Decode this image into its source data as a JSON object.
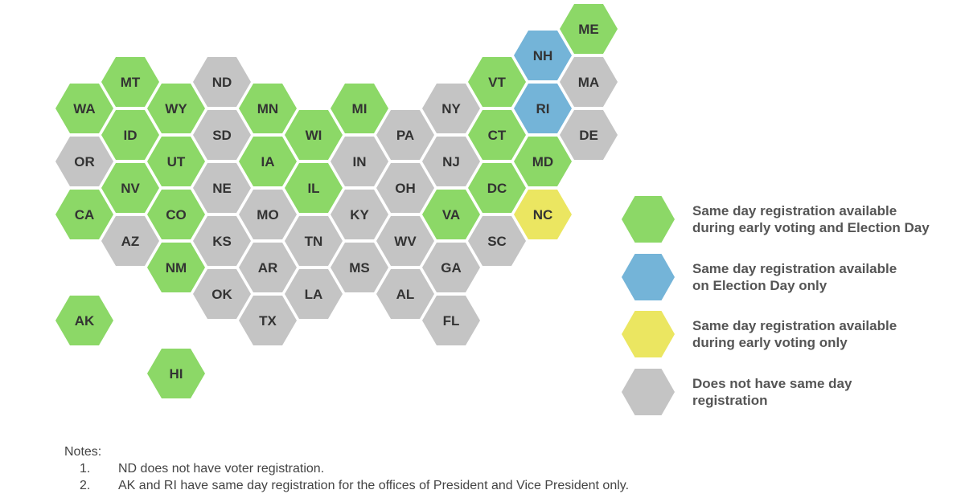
{
  "colors": {
    "both": "#8cd867",
    "election_day": "#74b4d8",
    "early_voting": "#ebe661",
    "none": "#c4c4c4"
  },
  "states": [
    {
      "abbr": "ME",
      "status": "both"
    },
    {
      "abbr": "NH",
      "status": "election_day"
    },
    {
      "abbr": "MT",
      "status": "both"
    },
    {
      "abbr": "ND",
      "status": "none"
    },
    {
      "abbr": "VT",
      "status": "both"
    },
    {
      "abbr": "MA",
      "status": "none"
    },
    {
      "abbr": "WA",
      "status": "both"
    },
    {
      "abbr": "WY",
      "status": "both"
    },
    {
      "abbr": "MN",
      "status": "both"
    },
    {
      "abbr": "MI",
      "status": "both"
    },
    {
      "abbr": "NY",
      "status": "none"
    },
    {
      "abbr": "RI",
      "status": "election_day"
    },
    {
      "abbr": "ID",
      "status": "both"
    },
    {
      "abbr": "SD",
      "status": "none"
    },
    {
      "abbr": "WI",
      "status": "both"
    },
    {
      "abbr": "PA",
      "status": "none"
    },
    {
      "abbr": "CT",
      "status": "both"
    },
    {
      "abbr": "DE",
      "status": "none"
    },
    {
      "abbr": "OR",
      "status": "none"
    },
    {
      "abbr": "UT",
      "status": "both"
    },
    {
      "abbr": "IA",
      "status": "both"
    },
    {
      "abbr": "IN",
      "status": "none"
    },
    {
      "abbr": "NJ",
      "status": "none"
    },
    {
      "abbr": "MD",
      "status": "both"
    },
    {
      "abbr": "NV",
      "status": "both"
    },
    {
      "abbr": "NE",
      "status": "none"
    },
    {
      "abbr": "IL",
      "status": "both"
    },
    {
      "abbr": "OH",
      "status": "none"
    },
    {
      "abbr": "DC",
      "status": "both"
    },
    {
      "abbr": "CA",
      "status": "both"
    },
    {
      "abbr": "CO",
      "status": "both"
    },
    {
      "abbr": "MO",
      "status": "none"
    },
    {
      "abbr": "KY",
      "status": "none"
    },
    {
      "abbr": "VA",
      "status": "both"
    },
    {
      "abbr": "NC",
      "status": "early_voting"
    },
    {
      "abbr": "AZ",
      "status": "none"
    },
    {
      "abbr": "KS",
      "status": "none"
    },
    {
      "abbr": "TN",
      "status": "none"
    },
    {
      "abbr": "WV",
      "status": "none"
    },
    {
      "abbr": "SC",
      "status": "none"
    },
    {
      "abbr": "NM",
      "status": "both"
    },
    {
      "abbr": "AR",
      "status": "none"
    },
    {
      "abbr": "MS",
      "status": "none"
    },
    {
      "abbr": "GA",
      "status": "none"
    },
    {
      "abbr": "OK",
      "status": "none"
    },
    {
      "abbr": "LA",
      "status": "none"
    },
    {
      "abbr": "AL",
      "status": "none"
    },
    {
      "abbr": "AK",
      "status": "both"
    },
    {
      "abbr": "TX",
      "status": "none"
    },
    {
      "abbr": "FL",
      "status": "none"
    },
    {
      "abbr": "HI",
      "status": "both"
    }
  ],
  "legend": [
    {
      "key": "both",
      "lines": [
        "Same day registration available",
        "during early voting and Election Day"
      ]
    },
    {
      "key": "election_day",
      "lines": [
        "Same day registration available",
        "on Election Day only"
      ]
    },
    {
      "key": "early_voting",
      "lines": [
        "Same day registration available",
        "during early voting only"
      ]
    },
    {
      "key": "none",
      "lines": [
        "Does not have same day",
        "registration"
      ]
    }
  ],
  "notes": {
    "title": "Notes:",
    "items": [
      {
        "num": "1.",
        "text": "ND does not have voter registration."
      },
      {
        "num": "2.",
        "text": "AK and RI have same day registration for the offices of President and Vice President only."
      }
    ]
  }
}
